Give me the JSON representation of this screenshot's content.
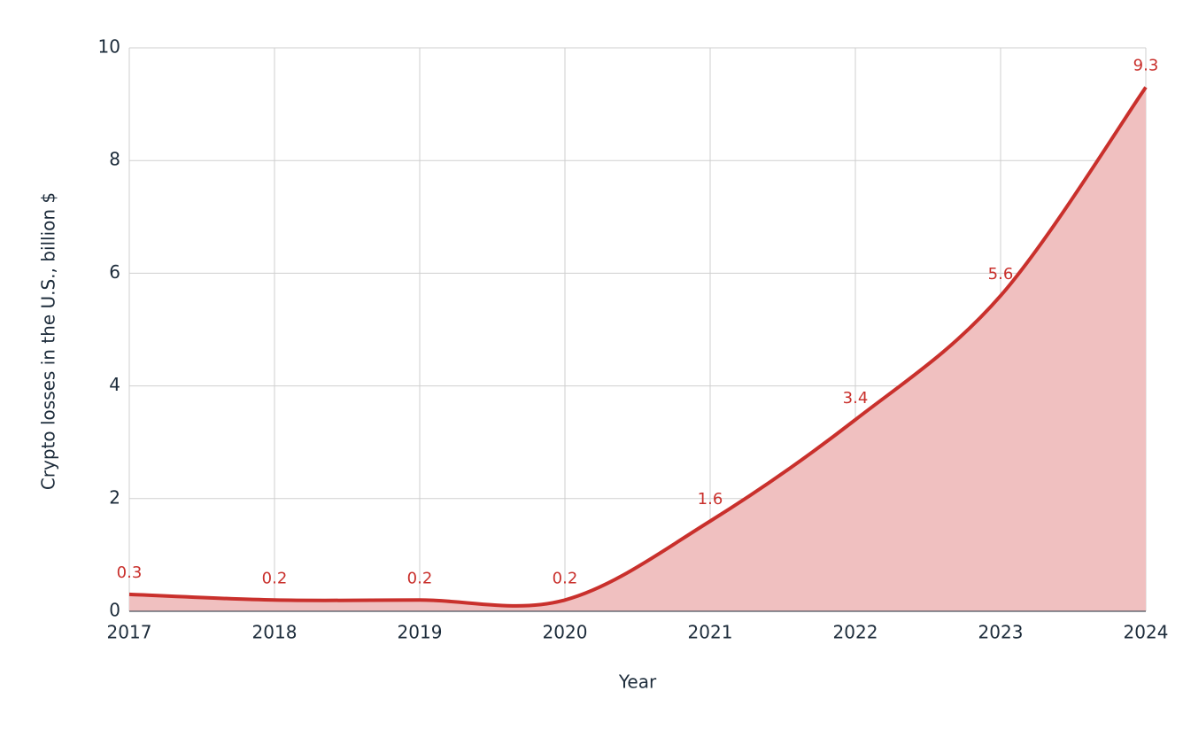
{
  "chart_data": {
    "type": "area",
    "x": [
      2017,
      2018,
      2019,
      2020,
      2021,
      2022,
      2023,
      2024
    ],
    "values": [
      0.3,
      0.2,
      0.2,
      0.2,
      1.6,
      3.4,
      5.6,
      9.3
    ],
    "color": "#c9302c",
    "fill": "#f0c0c0",
    "xlabel": "Year",
    "ylabel": "Crypto losses in the U.S., billion $",
    "xlim": [
      2017,
      2024
    ],
    "xticks": [
      2017,
      2018,
      2019,
      2020,
      2021,
      2022,
      2023,
      2024
    ],
    "ylim": [
      0,
      10
    ],
    "yticks": [
      0,
      2,
      4,
      6,
      8,
      10
    ],
    "grid": true
  }
}
